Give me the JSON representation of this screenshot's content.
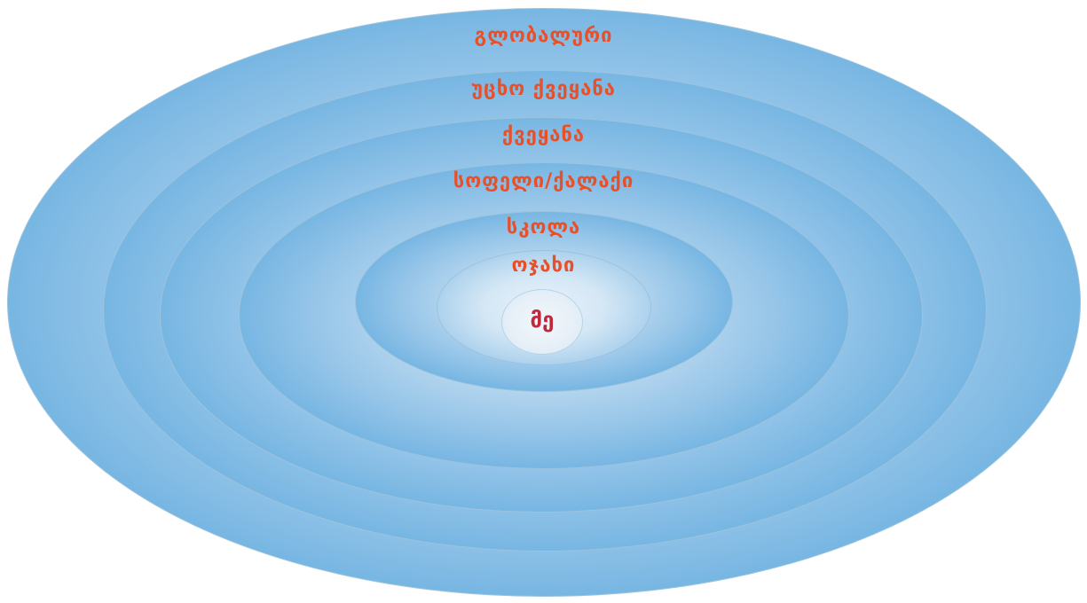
{
  "diagram": {
    "rings": [
      {
        "label": "გლობალური"
      },
      {
        "label": "უცხო ქვეყანა"
      },
      {
        "label": "ქვეყანა"
      },
      {
        "label": "სოფელი/ქალაქი"
      },
      {
        "label": "სკოლა"
      },
      {
        "label": "ოჯახი"
      }
    ],
    "center": {
      "label": "მე"
    },
    "colors": {
      "label": "#e8502a",
      "center_label": "#c0283c",
      "ring_edge": "#9cc3dd",
      "ring_fill": "#6ab0e0"
    }
  }
}
